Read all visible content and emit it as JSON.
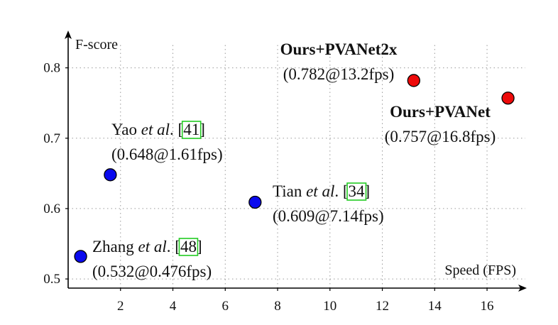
{
  "chart_data": {
    "type": "scatter",
    "xlabel": "Speed (FPS)",
    "ylabel": "F-score",
    "xlim": [
      0,
      17.3
    ],
    "ylim": [
      0.487,
      0.85
    ],
    "xticks": [
      2,
      4,
      6,
      8,
      10,
      12,
      14,
      16
    ],
    "yticks": [
      0.5,
      0.6,
      0.7,
      0.8
    ],
    "grid": true,
    "points": [
      {
        "method": "Zhang",
        "etal": "et al",
        "ref": "48",
        "x": 0.476,
        "y": 0.532,
        "value_label": "(0.532@0.476fps)",
        "color": "#0a0aee",
        "bold": false
      },
      {
        "method": "Yao",
        "etal": "et al",
        "ref": "41",
        "x": 1.61,
        "y": 0.648,
        "value_label": "(0.648@1.61fps)",
        "color": "#0a0aee",
        "bold": false
      },
      {
        "method": "Tian",
        "etal": "et al",
        "ref": "34",
        "x": 7.14,
        "y": 0.609,
        "value_label": "(0.609@7.14fps)",
        "color": "#0a0aee",
        "bold": false
      },
      {
        "method": "Ours+PVANet2x",
        "etal": "",
        "ref": "",
        "x": 13.2,
        "y": 0.782,
        "value_label": "(0.782@13.2fps)",
        "color": "#ee0a0a",
        "bold": true
      },
      {
        "method": "Ours+PVANet",
        "etal": "",
        "ref": "",
        "x": 16.8,
        "y": 0.757,
        "value_label": "(0.757@16.8fps)",
        "color": "#ee0a0a",
        "bold": true
      }
    ]
  }
}
